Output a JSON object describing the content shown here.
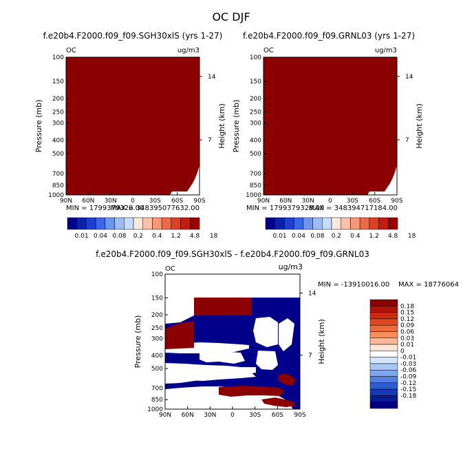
{
  "figure_title": "OC DJF",
  "chart_data": [
    {
      "type": "heatmap",
      "title": "f.e20b4.F2000.f09_f09.SGH30xlS (yrs 1-27)",
      "variable_label": "OC",
      "units": "ug/m3",
      "xlabel": "",
      "ylabel": "Pressure (mb)",
      "y2label": "Height (km)",
      "x_ticks": [
        "90N",
        "60N",
        "30N",
        "0",
        "30S",
        "60S",
        "90S"
      ],
      "y_ticks": [
        "100",
        "150",
        "200",
        "250",
        "300",
        "400",
        "500",
        "700",
        "850",
        "1000"
      ],
      "y2_ticks": [
        "14",
        "7"
      ],
      "ylim": [
        1000,
        100
      ],
      "y_scale": "log",
      "min_text": "MIN = 1799379328.00",
      "max_text": "MAX = 348395077632.00",
      "fill_color": "#8b0000",
      "description_color_level": "all values above 18 (top colorbar bin)"
    },
    {
      "type": "heatmap",
      "title": "f.e20b4.F2000.f09_f09.GRNL03 (yrs 1-27)",
      "variable_label": "OC",
      "units": "ug/m3",
      "xlabel": "",
      "ylabel": "Pressure (mb)",
      "y2label": "Height (km)",
      "x_ticks": [
        "90N",
        "60N",
        "30N",
        "0",
        "30S",
        "60S",
        "90S"
      ],
      "y_ticks": [
        "100",
        "150",
        "200",
        "250",
        "300",
        "400",
        "500",
        "700",
        "850",
        "1000"
      ],
      "y2_ticks": [
        "14",
        "7"
      ],
      "ylim": [
        1000,
        100
      ],
      "y_scale": "log",
      "min_text": "MIN = 1799379328.00",
      "max_text": "MAX = 348394717184.00",
      "fill_color": "#8b0000"
    },
    {
      "type": "heatmap",
      "title": "f.e20b4.F2000.f09_f09.SGH30xlS - f.e20b4.F2000.f09_f09.GRNL03",
      "variable_label": "OC",
      "units": "ug/m3",
      "xlabel": "",
      "ylabel": "Pressure (mb)",
      "y2label": "Height (km)",
      "x_ticks": [
        "90N",
        "60N",
        "30N",
        "0",
        "30S",
        "60S",
        "90S"
      ],
      "y_ticks": [
        "100",
        "150",
        "200",
        "250",
        "300",
        "400",
        "500",
        "700",
        "850",
        "1000"
      ],
      "y2_ticks": [
        "14",
        "7"
      ],
      "ylim": [
        1000,
        100
      ],
      "y_scale": "log",
      "min_text": "MIN = -13910016.00",
      "max_text": "MAX = 18776064",
      "positive_color": "#8b0000",
      "negative_color": "#00008b"
    }
  ],
  "colorbar_top": {
    "labels": [
      "0.01",
      "0.04",
      "0.08",
      "0.2",
      "0.4",
      "1.2",
      "4.8",
      "18"
    ],
    "colors": [
      "#00008b",
      "#0a22a8",
      "#1f3fd1",
      "#3a66ea",
      "#6a95f3",
      "#9bbdf7",
      "#c6dcfb",
      "#fbe8dc",
      "#fbc2a7",
      "#f79775",
      "#ec6a45",
      "#df4022",
      "#c41c0c",
      "#9b0000"
    ]
  },
  "colorbar_diff": {
    "labels": [
      "0.18",
      "0.15",
      "0.12",
      "0.09",
      "0.06",
      "0.03",
      "0.01",
      "0",
      "-0.01",
      "-0.03",
      "-0.06",
      "-0.09",
      "-0.12",
      "-0.15",
      "-0.18"
    ],
    "colors": [
      "#8b0000",
      "#b0120a",
      "#cc2a12",
      "#e0461f",
      "#ee6a3c",
      "#f5905e",
      "#f9b898",
      "#fde6d8",
      "#ffffff",
      "#d3e4fb",
      "#a9c6f5",
      "#7da4ee",
      "#5180e2",
      "#2e5cd2",
      "#1639b8",
      "#061a96",
      "#000080"
    ]
  }
}
